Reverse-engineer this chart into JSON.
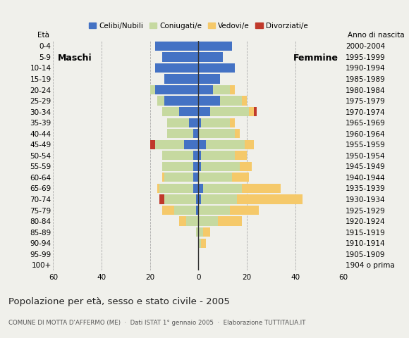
{
  "age_groups": [
    "100+",
    "95-99",
    "90-94",
    "85-89",
    "80-84",
    "75-79",
    "70-74",
    "65-69",
    "60-64",
    "55-59",
    "50-54",
    "45-49",
    "40-44",
    "35-39",
    "30-34",
    "25-29",
    "20-24",
    "15-19",
    "10-14",
    "5-9",
    "0-4"
  ],
  "birth_years": [
    "1904 o prima",
    "1905-1909",
    "1910-1914",
    "1915-1919",
    "1920-1924",
    "1925-1929",
    "1930-1934",
    "1935-1939",
    "1940-1944",
    "1945-1949",
    "1950-1954",
    "1955-1959",
    "1960-1964",
    "1965-1969",
    "1970-1974",
    "1975-1979",
    "1980-1984",
    "1985-1989",
    "1990-1994",
    "1995-1999",
    "2000-2004"
  ],
  "male": {
    "celibi": [
      0,
      0,
      0,
      0,
      0,
      1,
      1,
      2,
      2,
      2,
      2,
      6,
      2,
      4,
      8,
      14,
      18,
      14,
      18,
      15,
      18
    ],
    "coniugati": [
      0,
      0,
      0,
      1,
      5,
      9,
      13,
      14,
      12,
      13,
      13,
      12,
      11,
      9,
      7,
      3,
      2,
      0,
      0,
      0,
      0
    ],
    "vedovi": [
      0,
      0,
      0,
      0,
      3,
      5,
      0,
      1,
      1,
      0,
      0,
      0,
      0,
      0,
      0,
      0,
      0,
      0,
      0,
      0,
      0
    ],
    "divorziati": [
      0,
      0,
      0,
      0,
      0,
      0,
      2,
      0,
      0,
      0,
      0,
      2,
      0,
      0,
      0,
      0,
      0,
      0,
      0,
      0,
      0
    ]
  },
  "female": {
    "nubili": [
      0,
      0,
      0,
      0,
      0,
      0,
      1,
      2,
      0,
      1,
      1,
      3,
      0,
      1,
      5,
      9,
      6,
      9,
      15,
      10,
      14
    ],
    "coniugate": [
      0,
      0,
      1,
      2,
      8,
      13,
      15,
      16,
      14,
      16,
      14,
      16,
      15,
      12,
      16,
      9,
      7,
      0,
      0,
      0,
      0
    ],
    "vedove": [
      0,
      0,
      2,
      3,
      10,
      12,
      27,
      16,
      7,
      5,
      5,
      4,
      2,
      2,
      2,
      2,
      2,
      0,
      0,
      0,
      0
    ],
    "divorziate": [
      0,
      0,
      0,
      0,
      0,
      0,
      0,
      0,
      0,
      0,
      0,
      0,
      0,
      0,
      1,
      0,
      0,
      0,
      0,
      0,
      0
    ]
  },
  "colors": {
    "celibi": "#4472c4",
    "coniugati": "#c6d9a0",
    "vedovi": "#f5c96a",
    "divorziati": "#c0392b"
  },
  "title": "Popolazione per età, sesso e stato civile - 2005",
  "subtitle": "COMUNE DI MOTTA D'AFFERMO (ME)  ·  Dati ISTAT 1° gennaio 2005  ·  Elaborazione TUTTITALIA.IT",
  "xlim": 60,
  "xlabel_left": "Maschi",
  "xlabel_right": "Femmine",
  "ylabel_left": "Età",
  "ylabel_right": "Anno di nascita",
  "legend_labels": [
    "Celibi/Nubili",
    "Coniugati/e",
    "Vedovi/e",
    "Divorziati/e"
  ],
  "bg_color": "#f0f0eb"
}
